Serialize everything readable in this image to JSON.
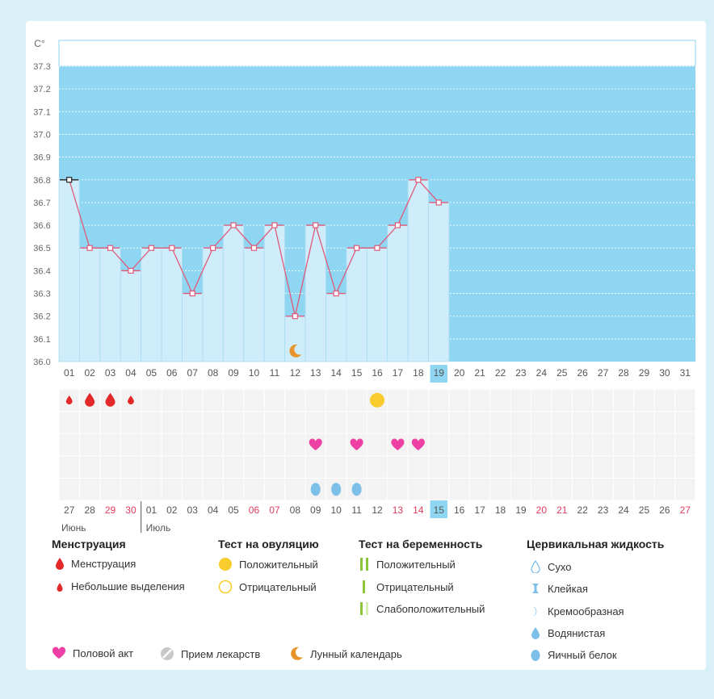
{
  "chart_data": {
    "type": "bar",
    "unit_label": "C°",
    "y_ticks": [
      "36.0",
      "36.1",
      "36.2",
      "36.3",
      "36.4",
      "36.5",
      "36.6",
      "36.7",
      "36.8",
      "36.9",
      "37.0",
      "37.1",
      "37.2",
      "37.3"
    ],
    "ylim": [
      36.0,
      37.3
    ],
    "cycle_days": [
      "01",
      "02",
      "03",
      "04",
      "05",
      "06",
      "07",
      "08",
      "09",
      "10",
      "11",
      "12",
      "13",
      "14",
      "15",
      "16",
      "17",
      "18",
      "19",
      "20",
      "21",
      "22",
      "23",
      "24",
      "25",
      "26",
      "27",
      "28",
      "29",
      "30",
      "31"
    ],
    "values": [
      36.8,
      36.5,
      36.5,
      36.4,
      36.5,
      36.5,
      36.3,
      36.5,
      36.6,
      36.5,
      36.6,
      36.2,
      36.6,
      36.3,
      36.5,
      36.5,
      36.6,
      36.8,
      36.7
    ],
    "current_cycle_day": "19",
    "calendar_dates": [
      "27",
      "28",
      "29",
      "30",
      "01",
      "02",
      "03",
      "04",
      "05",
      "06",
      "07",
      "08",
      "09",
      "10",
      "11",
      "12",
      "13",
      "14",
      "15",
      "16",
      "17",
      "18",
      "19",
      "20",
      "21",
      "22",
      "23",
      "24",
      "25",
      "26",
      "27"
    ],
    "weekend_dates": [
      2,
      3,
      9,
      10,
      16,
      17,
      23,
      24,
      30
    ],
    "current_date_index": 18,
    "months": [
      "Июнь",
      "Июль"
    ],
    "moon_day": "12",
    "events": {
      "menstruation": [
        {
          "day": "01",
          "size": "small"
        },
        {
          "day": "02",
          "size": "large"
        },
        {
          "day": "03",
          "size": "large"
        },
        {
          "day": "04",
          "size": "small"
        }
      ],
      "ovulation_positive": [
        "16"
      ],
      "intercourse": [
        "13",
        "15",
        "17",
        "18"
      ],
      "cervical_egg_white": [
        "13",
        "14",
        "15"
      ]
    }
  },
  "legend": {
    "menstruation": {
      "title": "Менструация",
      "items": [
        "Менструация",
        "Небольшие выделения"
      ]
    },
    "ovulation_test": {
      "title": "Тест на овуляцию",
      "items": [
        "Положительный",
        "Отрицательный"
      ]
    },
    "pregnancy_test": {
      "title": "Тест на беременность",
      "items": [
        "Положительный",
        "Отрицательный",
        "Слабоположительный"
      ]
    },
    "cervical": {
      "title": "Цервикальная жидкость",
      "items": [
        "Сухо",
        "Клейкая",
        "Кремообразная",
        "Водянистая",
        "Яичный белок"
      ]
    },
    "bottom": [
      "Половой акт",
      "Прием лекарств",
      "Лунный календарь"
    ]
  },
  "colors": {
    "plot_bg": "#8fd6f2",
    "bar_fill": "#cfecfa",
    "line": "#e05a78",
    "blood": "#e22828",
    "heart": "#ee3fa4",
    "egg_white": "#7cbfe8",
    "ovulation": "#f8cc2c",
    "moon": "#e8942a",
    "highlight": "#8fd6f2",
    "weekend": "#e23a5c",
    "test_green": "#8cc43a"
  }
}
